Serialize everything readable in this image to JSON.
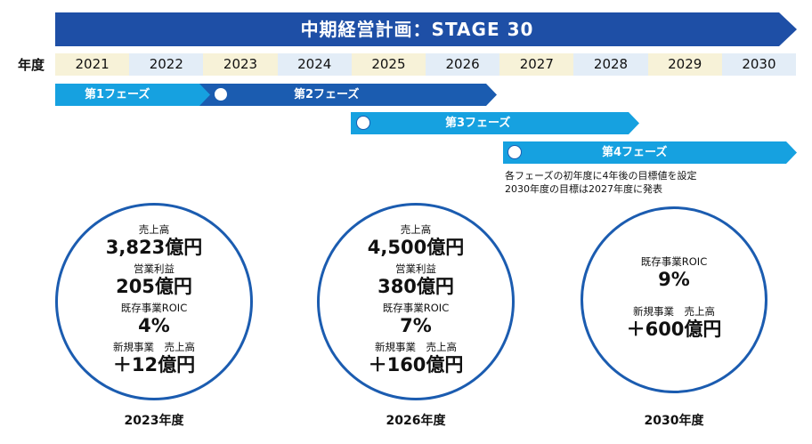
{
  "header": {
    "title": "中期経営計画：STAGE 30"
  },
  "timeline": {
    "year_label": "年度",
    "years": [
      "2021",
      "2022",
      "2023",
      "2024",
      "2025",
      "2026",
      "2027",
      "2028",
      "2029",
      "2030"
    ]
  },
  "phases": {
    "phase1": "第1フェーズ",
    "phase2": "第2フェーズ",
    "phase3": "第3フェーズ",
    "phase4": "第4フェーズ"
  },
  "note": {
    "line1": "各フェーズの初年度に4年後の目標値を設定",
    "line2": "2030年度の目標は2027年度に発表"
  },
  "targets": {
    "y2023": {
      "sales_label": "売上高",
      "sales_value": "3,823億円",
      "op_label": "営業利益",
      "op_value": "205億円",
      "roic_label": "既存事業ROIC",
      "roic_value": "4%",
      "new_label": "新規事業　売上高",
      "new_value": "＋12億円",
      "year": "2023年度"
    },
    "y2026": {
      "sales_label": "売上高",
      "sales_value": "4,500億円",
      "op_label": "営業利益",
      "op_value": "380億円",
      "roic_label": "既存事業ROIC",
      "roic_value": "7%",
      "new_label": "新規事業　売上高",
      "new_value": "＋160億円",
      "year": "2026年度"
    },
    "y2030": {
      "roic_label": "既存事業ROIC",
      "roic_value": "9%",
      "new_label": "新規事業　売上高",
      "new_value": "＋600億円",
      "year": "2030年度"
    }
  },
  "colors": {
    "banner": "#1e4fa6",
    "phase_light": "#16a1e0",
    "phase_dark": "#1b5cb0",
    "circle_border": "#1b5cb0"
  }
}
